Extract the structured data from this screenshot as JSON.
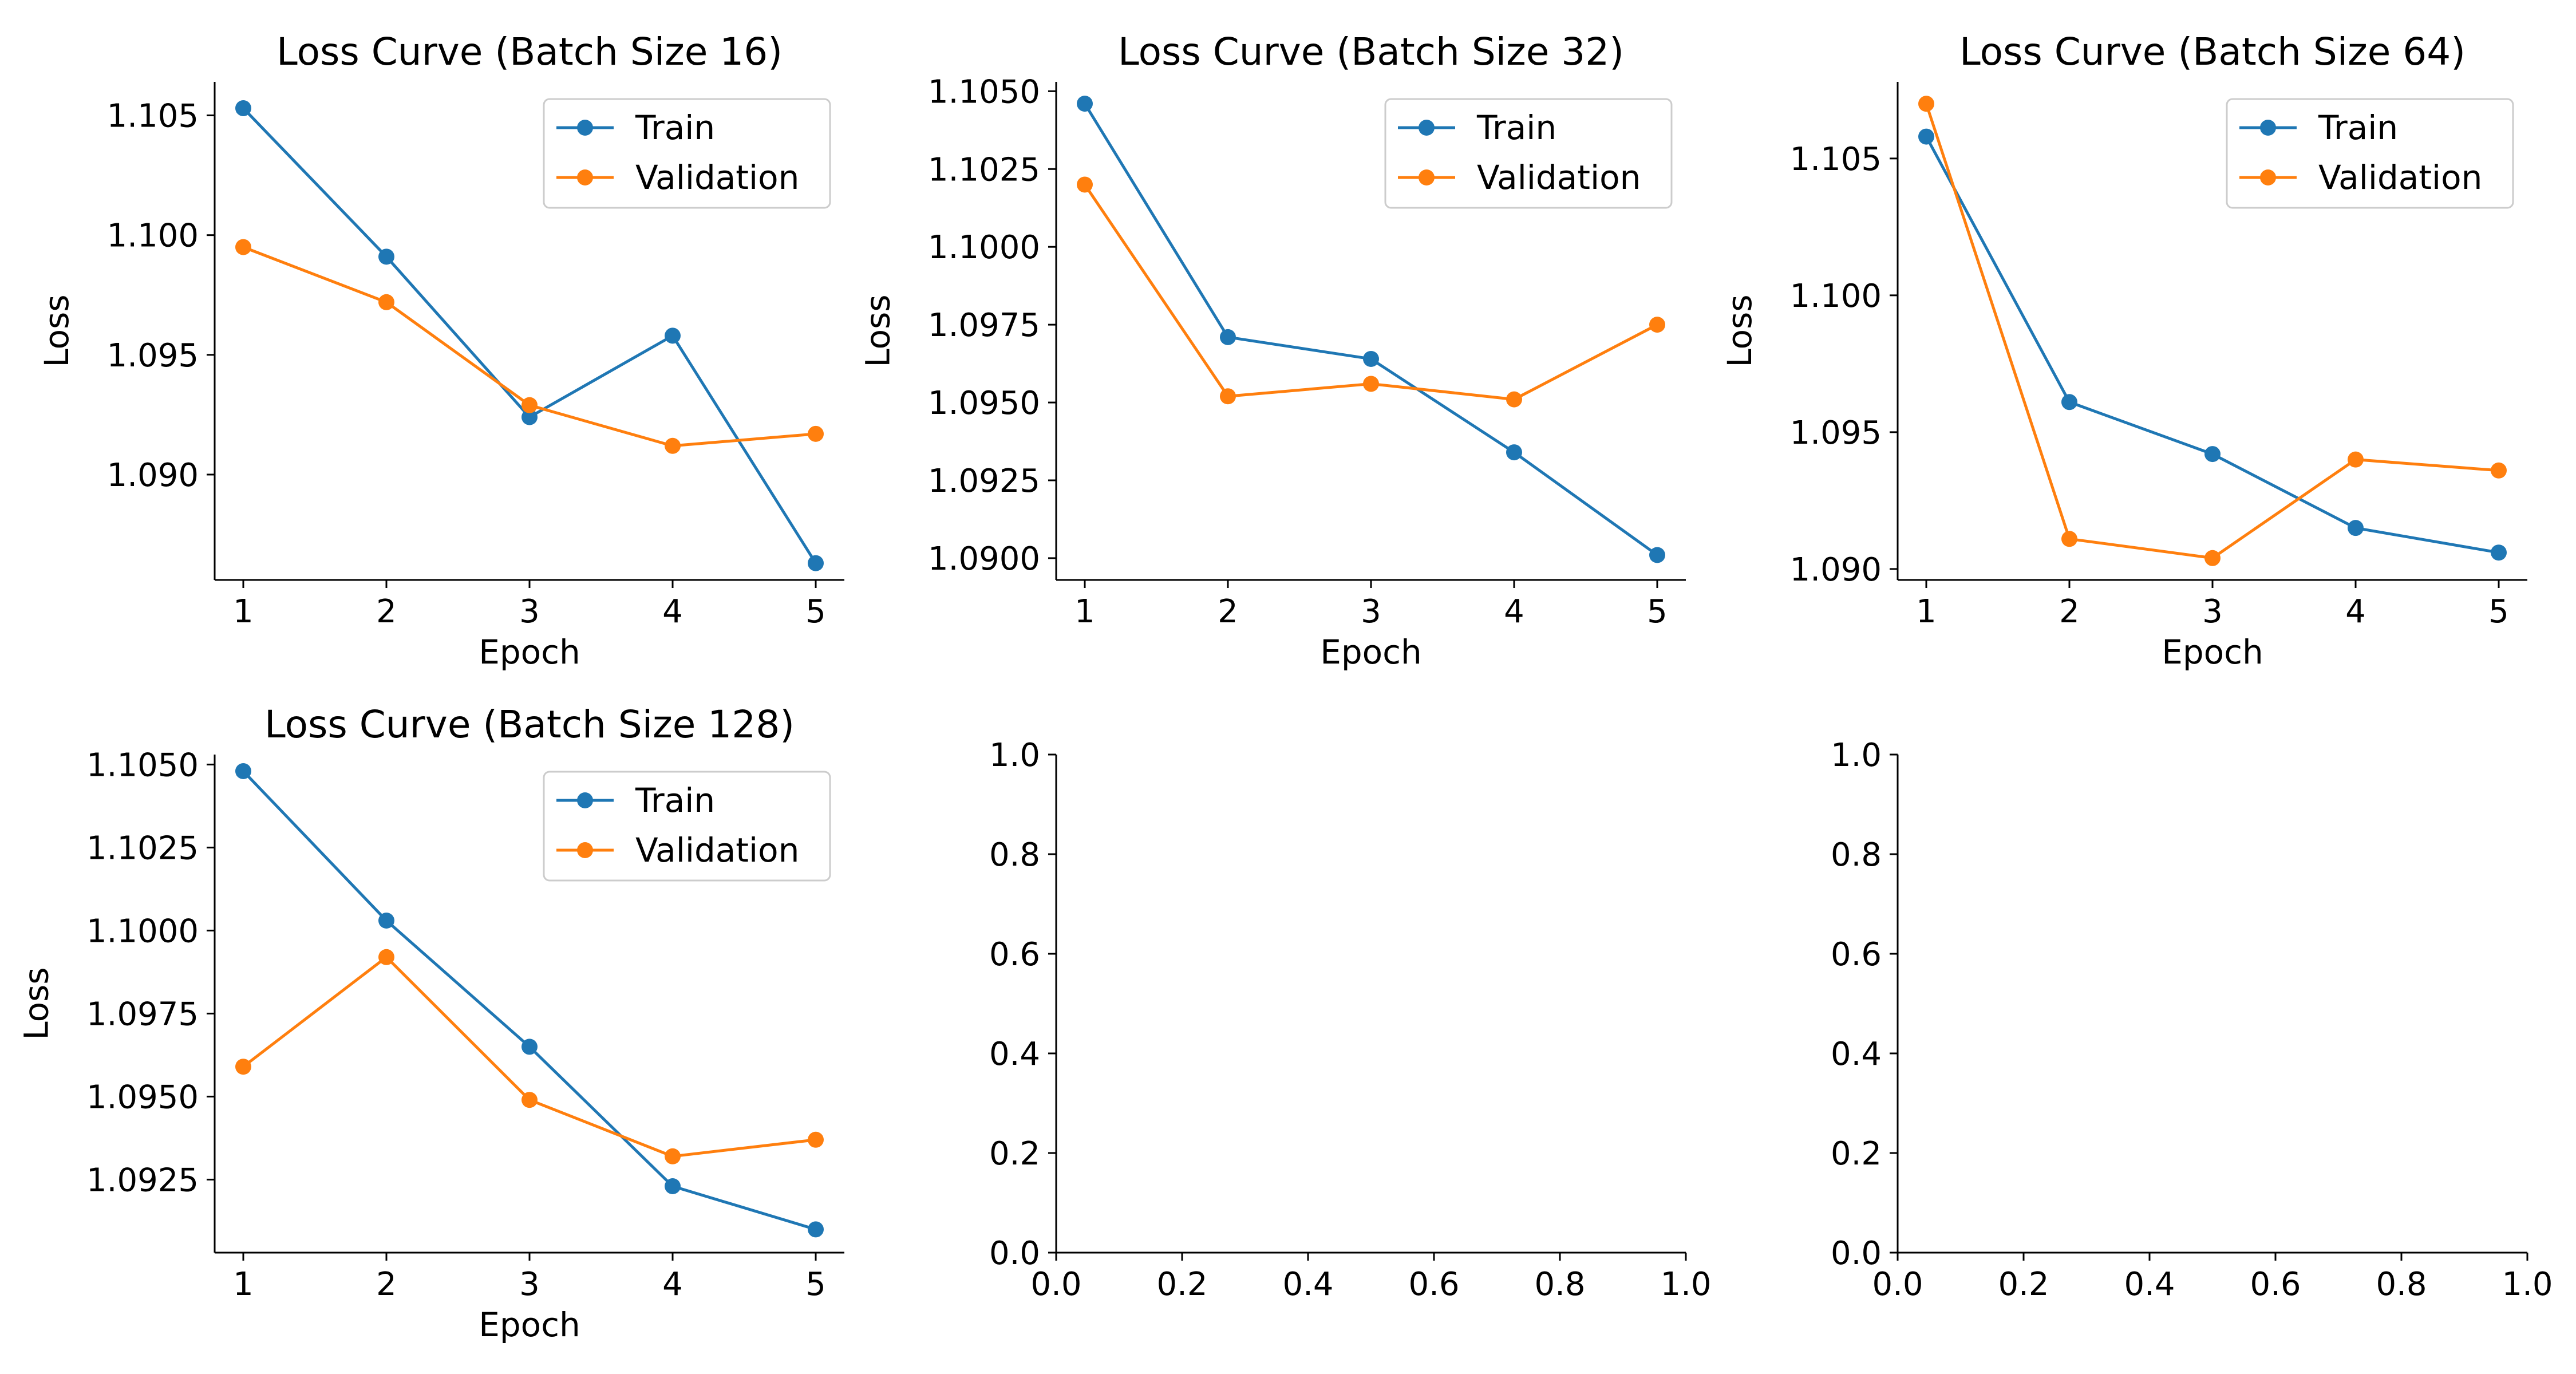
{
  "colors": {
    "train": "#1f77b4",
    "validation": "#ff7f0e",
    "axis": "#000000",
    "legend_border": "#cccccc"
  },
  "chart_data": [
    {
      "type": "line",
      "title": "Loss Curve (Batch Size 16)",
      "xlabel": "Epoch",
      "ylabel": "Loss",
      "x": [
        1,
        2,
        3,
        4,
        5
      ],
      "xticks": [
        "1",
        "2",
        "3",
        "4",
        "5"
      ],
      "yticks": [
        "1.090",
        "1.095",
        "1.100",
        "1.105"
      ],
      "ylim": [
        1.0856,
        1.1064
      ],
      "grid": false,
      "legend": "upper-right",
      "series": [
        {
          "name": "Train",
          "color": "#1f77b4",
          "values": [
            1.1053,
            1.0991,
            1.0924,
            1.0958,
            1.0863
          ]
        },
        {
          "name": "Validation",
          "color": "#ff7f0e",
          "values": [
            1.0995,
            1.0972,
            1.0929,
            1.0912,
            1.0917
          ]
        }
      ]
    },
    {
      "type": "line",
      "title": "Loss Curve (Batch Size 32)",
      "xlabel": "Epoch",
      "ylabel": "Loss",
      "x": [
        1,
        2,
        3,
        4,
        5
      ],
      "xticks": [
        "1",
        "2",
        "3",
        "4",
        "5"
      ],
      "yticks": [
        "1.0900",
        "1.0925",
        "1.0950",
        "1.0975",
        "1.1000",
        "1.1025",
        "1.1050"
      ],
      "ylim": [
        1.0893,
        1.1053
      ],
      "grid": false,
      "legend": "upper-right",
      "series": [
        {
          "name": "Train",
          "color": "#1f77b4",
          "values": [
            1.1046,
            1.0971,
            1.0964,
            1.0934,
            1.0901
          ]
        },
        {
          "name": "Validation",
          "color": "#ff7f0e",
          "values": [
            1.102,
            1.0952,
            1.0956,
            1.0951,
            1.0975
          ]
        }
      ]
    },
    {
      "type": "line",
      "title": "Loss Curve (Batch Size 64)",
      "xlabel": "Epoch",
      "ylabel": "Loss",
      "x": [
        1,
        2,
        3,
        4,
        5
      ],
      "xticks": [
        "1",
        "2",
        "3",
        "4",
        "5"
      ],
      "yticks": [
        "1.090",
        "1.095",
        "1.100",
        "1.105"
      ],
      "ylim": [
        1.0896,
        1.1078
      ],
      "grid": false,
      "legend": "upper-right",
      "series": [
        {
          "name": "Train",
          "color": "#1f77b4",
          "values": [
            1.1058,
            1.0961,
            1.0942,
            1.0915,
            1.0906
          ]
        },
        {
          "name": "Validation",
          "color": "#ff7f0e",
          "values": [
            1.107,
            1.0911,
            1.0904,
            1.094,
            1.0936
          ]
        }
      ]
    },
    {
      "type": "line",
      "title": "Loss Curve (Batch Size 128)",
      "xlabel": "Epoch",
      "ylabel": "Loss",
      "x": [
        1,
        2,
        3,
        4,
        5
      ],
      "xticks": [
        "1",
        "2",
        "3",
        "4",
        "5"
      ],
      "yticks": [
        "1.0925",
        "1.0950",
        "1.0975",
        "1.1000",
        "1.1025",
        "1.1050"
      ],
      "ylim": [
        1.0903,
        1.1053
      ],
      "grid": false,
      "legend": "upper-right",
      "series": [
        {
          "name": "Train",
          "color": "#1f77b4",
          "values": [
            1.1048,
            1.1003,
            1.0965,
            1.0923,
            1.091
          ]
        },
        {
          "name": "Validation",
          "color": "#ff7f0e",
          "values": [
            1.0959,
            1.0992,
            1.0949,
            1.0932,
            1.0937
          ]
        }
      ]
    },
    {
      "type": "line",
      "title": "",
      "xlabel": "",
      "ylabel": "",
      "xticks": [
        "0.0",
        "0.2",
        "0.4",
        "0.6",
        "0.8",
        "1.0"
      ],
      "yticks": [
        "0.0",
        "0.2",
        "0.4",
        "0.6",
        "0.8",
        "1.0"
      ],
      "xlim": [
        0,
        1
      ],
      "ylim": [
        0,
        1
      ],
      "grid": false,
      "series": []
    },
    {
      "type": "line",
      "title": "",
      "xlabel": "",
      "ylabel": "",
      "xticks": [
        "0.0",
        "0.2",
        "0.4",
        "0.6",
        "0.8",
        "1.0"
      ],
      "yticks": [
        "0.0",
        "0.2",
        "0.4",
        "0.6",
        "0.8",
        "1.0"
      ],
      "xlim": [
        0,
        1
      ],
      "ylim": [
        0,
        1
      ],
      "grid": false,
      "series": []
    }
  ]
}
